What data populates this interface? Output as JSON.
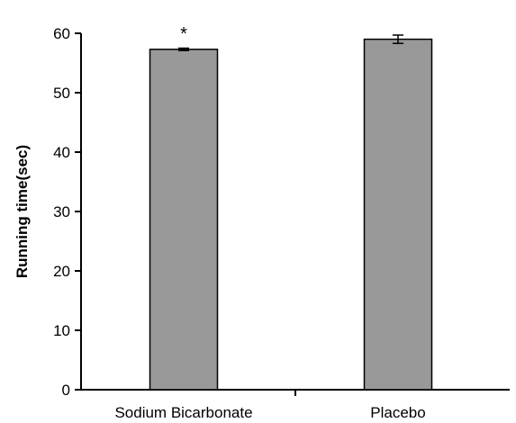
{
  "chart_data": {
    "type": "bar",
    "title": "",
    "xlabel": "",
    "ylabel": "Running time(sec)",
    "ylim": [
      0,
      60
    ],
    "yticks": [
      0,
      10,
      20,
      30,
      40,
      50,
      60
    ],
    "grid": false,
    "categories": [
      "Sodium Bicarbonate",
      "Placebo"
    ],
    "values": [
      57.3,
      59.0
    ],
    "errors": [
      0.2,
      0.7
    ],
    "annotations": [
      "*",
      ""
    ],
    "bar_color": "#999999"
  }
}
